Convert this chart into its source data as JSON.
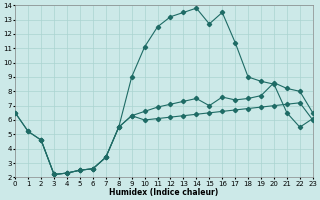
{
  "xlabel": "Humidex (Indice chaleur)",
  "xlim": [
    0,
    23
  ],
  "ylim": [
    2,
    14
  ],
  "xticks": [
    0,
    1,
    2,
    3,
    4,
    5,
    6,
    7,
    8,
    9,
    10,
    11,
    12,
    13,
    14,
    15,
    16,
    17,
    18,
    19,
    20,
    21,
    22,
    23
  ],
  "yticks": [
    2,
    3,
    4,
    5,
    6,
    7,
    8,
    9,
    10,
    11,
    12,
    13,
    14
  ],
  "bg_color": "#cce9e8",
  "grid_color": "#aad4d0",
  "line_color": "#1e6b65",
  "curve1_x": [
    0,
    1,
    2,
    3,
    4,
    5,
    6,
    7,
    8,
    9,
    10,
    11,
    12,
    13,
    14,
    15,
    16,
    17,
    18,
    19,
    20,
    21,
    22,
    23
  ],
  "curve1_y": [
    6.5,
    5.2,
    4.6,
    2.2,
    2.3,
    2.5,
    2.6,
    3.4,
    5.5,
    9.0,
    11.1,
    12.5,
    13.2,
    13.5,
    13.8,
    12.7,
    13.5,
    11.4,
    9.0,
    8.7,
    8.5,
    6.5,
    5.5,
    6.1
  ],
  "curve2_x": [
    0,
    1,
    2,
    3,
    4,
    5,
    6,
    7,
    8,
    9,
    10,
    11,
    12,
    13,
    14,
    15,
    16,
    17,
    18,
    19,
    20,
    21,
    22,
    23
  ],
  "curve2_y": [
    6.5,
    5.2,
    4.6,
    2.2,
    2.3,
    2.5,
    2.6,
    3.4,
    5.5,
    6.3,
    6.6,
    6.9,
    7.1,
    7.3,
    7.5,
    7.0,
    7.6,
    7.4,
    7.5,
    7.7,
    8.6,
    8.2,
    8.0,
    6.5
  ],
  "curve3_x": [
    2,
    3,
    4,
    5,
    6,
    7,
    8,
    9,
    10,
    11,
    12,
    13,
    14,
    15,
    16,
    17,
    18,
    19,
    20,
    21,
    22,
    23
  ],
  "curve3_y": [
    4.6,
    2.2,
    2.3,
    2.5,
    2.6,
    3.4,
    5.5,
    6.3,
    6.0,
    6.1,
    6.2,
    6.3,
    6.4,
    6.5,
    6.6,
    6.7,
    6.8,
    6.9,
    7.0,
    7.1,
    7.2,
    6.0
  ]
}
